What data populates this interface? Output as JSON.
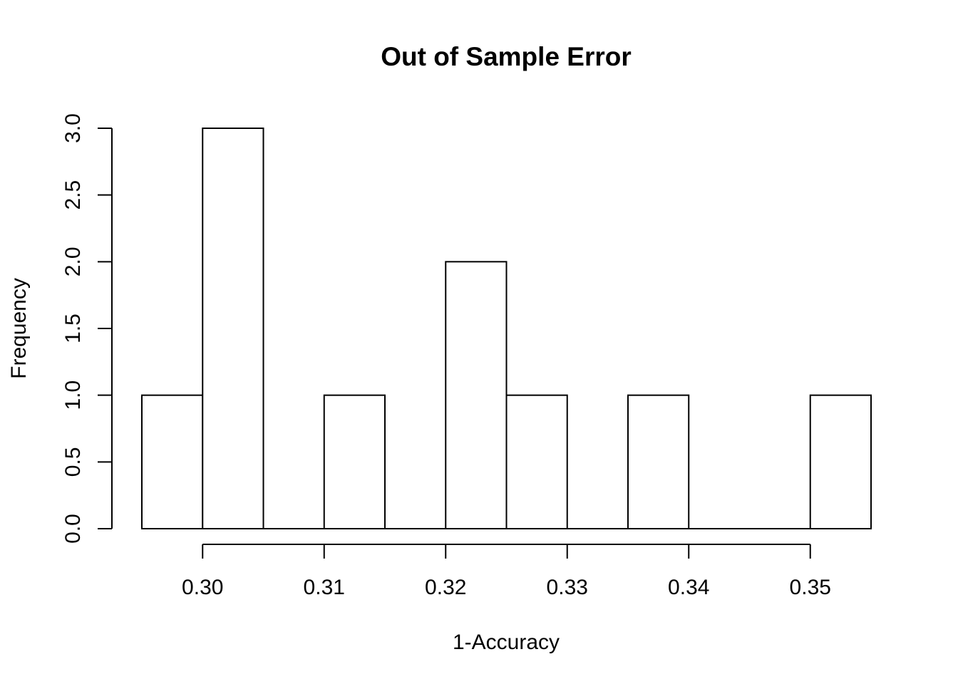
{
  "chart_data": {
    "type": "bar",
    "subtype": "histogram",
    "title": "Out of Sample Error",
    "xlabel": "1-Accuracy",
    "ylabel": "Frequency",
    "bins": [
      {
        "start": 0.295,
        "end": 0.3,
        "count": 1
      },
      {
        "start": 0.3,
        "end": 0.305,
        "count": 3
      },
      {
        "start": 0.305,
        "end": 0.31,
        "count": 0
      },
      {
        "start": 0.31,
        "end": 0.315,
        "count": 1
      },
      {
        "start": 0.315,
        "end": 0.32,
        "count": 0
      },
      {
        "start": 0.32,
        "end": 0.325,
        "count": 2
      },
      {
        "start": 0.325,
        "end": 0.33,
        "count": 1
      },
      {
        "start": 0.33,
        "end": 0.335,
        "count": 0
      },
      {
        "start": 0.335,
        "end": 0.34,
        "count": 1
      },
      {
        "start": 0.34,
        "end": 0.345,
        "count": 0
      },
      {
        "start": 0.345,
        "end": 0.35,
        "count": 0
      },
      {
        "start": 0.35,
        "end": 0.355,
        "count": 1
      }
    ],
    "xlim": [
      0.295,
      0.355
    ],
    "ylim": [
      0,
      3.0
    ],
    "x_ticks": [
      "0.30",
      "0.31",
      "0.32",
      "0.33",
      "0.34",
      "0.35"
    ],
    "y_ticks": [
      "0.0",
      "0.5",
      "1.0",
      "1.5",
      "2.0",
      "2.5",
      "3.0"
    ],
    "grid": false
  }
}
